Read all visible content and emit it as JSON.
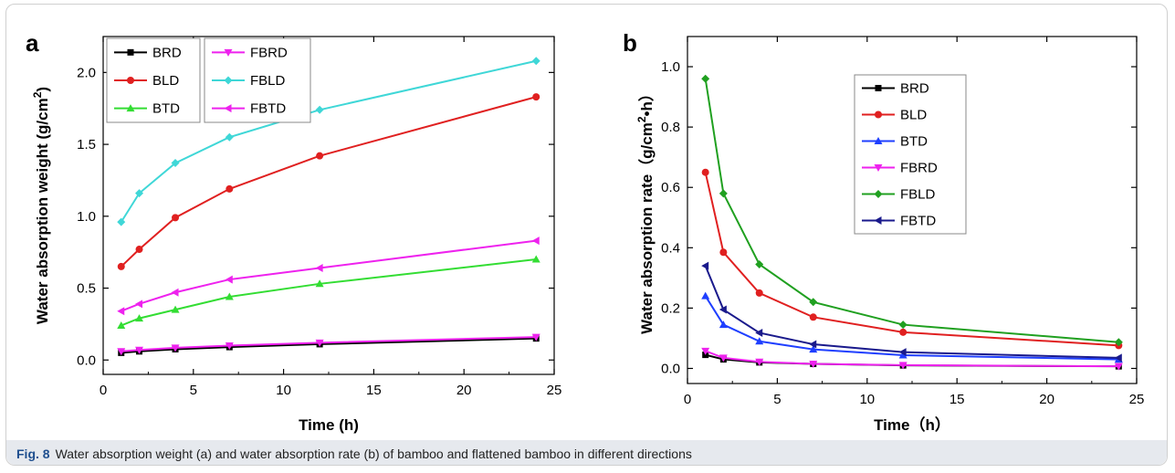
{
  "caption": {
    "label": "Fig. 8",
    "text": "Water absorption weight (a) and water absorption rate (b) of bamboo and flattened bamboo in different directions"
  },
  "colors": {
    "BRD": "#000000",
    "BLD": "#e02020",
    "BTD": "#1f3fff",
    "FBRD": "#ee22ee",
    "FBLD": "#20c820",
    "FBTD": "#1a1a8c",
    "FBLD_a": "#3fd7d7",
    "BTD_a": "#33dd33"
  },
  "chart_data": [
    {
      "panel_label": "a",
      "type": "line",
      "xlabel": "Time (h)",
      "ylabel": "Water absorption weight (g/cm²)",
      "xlim": [
        0,
        25
      ],
      "ylim": [
        -0.1,
        2.25
      ],
      "xticks": [
        "0",
        "5",
        "10",
        "15",
        "20",
        "25"
      ],
      "yticks": [
        "0.0",
        "0.5",
        "1.0",
        "1.5",
        "2.0"
      ],
      "legend_placement": "top-left, two columns",
      "x": [
        1,
        2,
        4,
        7,
        12,
        24
      ],
      "series": [
        {
          "name": "BRD",
          "color": "#000000",
          "marker": "square",
          "values": [
            0.05,
            0.06,
            0.075,
            0.09,
            0.11,
            0.15
          ]
        },
        {
          "name": "BLD",
          "color": "#e02020",
          "marker": "circle",
          "values": [
            0.65,
            0.77,
            0.99,
            1.19,
            1.42,
            1.83
          ]
        },
        {
          "name": "BTD",
          "color": "#33dd33",
          "marker": "triangle-up",
          "values": [
            0.24,
            0.29,
            0.35,
            0.44,
            0.53,
            0.7
          ]
        },
        {
          "name": "FBRD",
          "color": "#ee22ee",
          "marker": "triangle-down",
          "values": [
            0.06,
            0.07,
            0.085,
            0.1,
            0.12,
            0.16
          ]
        },
        {
          "name": "FBLD",
          "color": "#3fd7d7",
          "marker": "diamond",
          "values": [
            0.96,
            1.16,
            1.37,
            1.55,
            1.74,
            2.08
          ]
        },
        {
          "name": "FBTD",
          "color": "#ee22ee",
          "marker": "triangle-left",
          "values": [
            0.34,
            0.39,
            0.47,
            0.56,
            0.64,
            0.83
          ]
        }
      ]
    },
    {
      "panel_label": "b",
      "type": "line",
      "xlabel": "Time（h）",
      "ylabel": "Water absorption rate（g/cm²•h）",
      "xlim": [
        0,
        25
      ],
      "ylim": [
        -0.05,
        1.1
      ],
      "xticks": [
        "0",
        "5",
        "10",
        "15",
        "20",
        "25"
      ],
      "yticks": [
        "0.0",
        "0.2",
        "0.4",
        "0.6",
        "0.8",
        "1.0"
      ],
      "legend_placement": "center",
      "x": [
        1,
        2,
        4,
        7,
        12,
        24
      ],
      "series": [
        {
          "name": "BRD",
          "color": "#000000",
          "marker": "square",
          "values": [
            0.045,
            0.03,
            0.02,
            0.015,
            0.01,
            0.007
          ]
        },
        {
          "name": "BLD",
          "color": "#e02020",
          "marker": "circle",
          "values": [
            0.65,
            0.385,
            0.25,
            0.17,
            0.12,
            0.076
          ]
        },
        {
          "name": "BTD",
          "color": "#1f3fff",
          "marker": "triangle-up",
          "values": [
            0.24,
            0.145,
            0.09,
            0.063,
            0.044,
            0.03
          ]
        },
        {
          "name": "FBRD",
          "color": "#ee22ee",
          "marker": "triangle-down",
          "values": [
            0.058,
            0.035,
            0.022,
            0.015,
            0.011,
            0.007
          ]
        },
        {
          "name": "FBLD",
          "color": "#20a020",
          "marker": "diamond",
          "values": [
            0.96,
            0.58,
            0.345,
            0.22,
            0.145,
            0.087
          ]
        },
        {
          "name": "FBTD",
          "color": "#1a1a8c",
          "marker": "triangle-left",
          "values": [
            0.34,
            0.195,
            0.118,
            0.08,
            0.054,
            0.035
          ]
        }
      ]
    }
  ]
}
